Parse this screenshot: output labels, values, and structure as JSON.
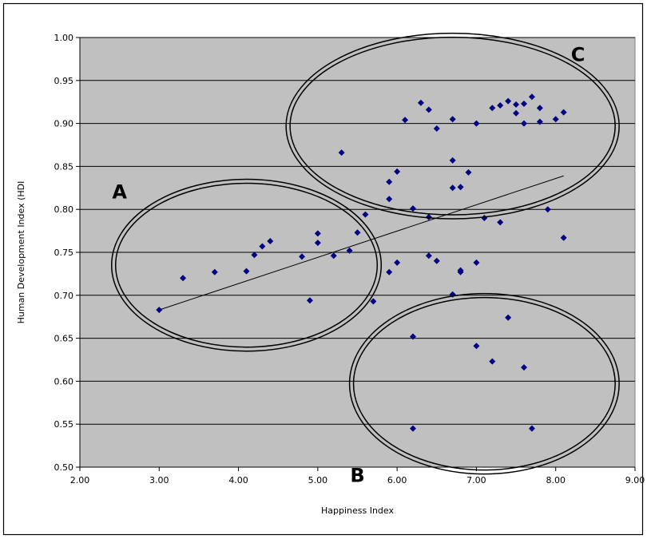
{
  "chart_data": {
    "type": "scatter",
    "title": "",
    "xlabel": "Happiness Index",
    "ylabel": "Human Development Index (HDI",
    "xlim": [
      2.0,
      9.0
    ],
    "ylim": [
      0.5,
      1.0
    ],
    "xticks": [
      "2.00",
      "3.00",
      "4.00",
      "5.00",
      "6.00",
      "7.00",
      "8.00",
      "9.00"
    ],
    "yticks": [
      "0.50",
      "0.55",
      "0.60",
      "0.65",
      "0.70",
      "0.75",
      "0.80",
      "0.85",
      "0.90",
      "0.95",
      "1.00"
    ],
    "grid": "horizontal",
    "background_color": "#c0c0c0",
    "marker_color": "#000080",
    "points": [
      [
        3.0,
        0.683
      ],
      [
        3.3,
        0.72
      ],
      [
        3.7,
        0.727
      ],
      [
        4.1,
        0.728
      ],
      [
        4.2,
        0.747
      ],
      [
        4.3,
        0.757
      ],
      [
        4.4,
        0.763
      ],
      [
        4.8,
        0.745
      ],
      [
        4.9,
        0.694
      ],
      [
        5.0,
        0.772
      ],
      [
        5.0,
        0.761
      ],
      [
        5.2,
        0.746
      ],
      [
        5.3,
        0.866
      ],
      [
        5.4,
        0.752
      ],
      [
        5.5,
        0.773
      ],
      [
        5.6,
        0.794
      ],
      [
        5.7,
        0.693
      ],
      [
        5.9,
        0.812
      ],
      [
        5.9,
        0.832
      ],
      [
        5.9,
        0.727
      ],
      [
        6.0,
        0.844
      ],
      [
        6.0,
        0.738
      ],
      [
        6.1,
        0.904
      ],
      [
        6.2,
        0.801
      ],
      [
        6.2,
        0.652
      ],
      [
        6.2,
        0.545
      ],
      [
        6.3,
        0.924
      ],
      [
        6.4,
        0.916
      ],
      [
        6.4,
        0.791
      ],
      [
        6.4,
        0.746
      ],
      [
        6.5,
        0.894
      ],
      [
        6.5,
        0.74
      ],
      [
        6.7,
        0.905
      ],
      [
        6.7,
        0.857
      ],
      [
        6.7,
        0.825
      ],
      [
        6.7,
        0.701
      ],
      [
        6.8,
        0.826
      ],
      [
        6.8,
        0.729
      ],
      [
        6.8,
        0.727
      ],
      [
        6.9,
        0.843
      ],
      [
        7.0,
        0.9
      ],
      [
        7.0,
        0.738
      ],
      [
        7.0,
        0.641
      ],
      [
        7.1,
        0.79
      ],
      [
        7.2,
        0.918
      ],
      [
        7.2,
        0.623
      ],
      [
        7.3,
        0.921
      ],
      [
        7.3,
        0.785
      ],
      [
        7.4,
        0.926
      ],
      [
        7.4,
        0.674
      ],
      [
        7.5,
        0.922
      ],
      [
        7.5,
        0.912
      ],
      [
        7.6,
        0.923
      ],
      [
        7.6,
        0.9
      ],
      [
        7.6,
        0.616
      ],
      [
        7.7,
        0.931
      ],
      [
        7.7,
        0.545
      ],
      [
        7.8,
        0.918
      ],
      [
        7.8,
        0.902
      ],
      [
        7.9,
        0.8
      ],
      [
        8.0,
        0.905
      ],
      [
        8.1,
        0.913
      ],
      [
        8.1,
        0.767
      ]
    ],
    "trendline": {
      "from": [
        3.0,
        0.683
      ],
      "to": [
        8.1,
        0.839
      ]
    },
    "annotations": [
      {
        "label": "A",
        "center": [
          4.1,
          0.735
        ],
        "radius": [
          1.7,
          0.1
        ]
      },
      {
        "label": "B",
        "center": [
          7.1,
          0.597
        ],
        "radius": [
          1.7,
          0.105
        ]
      },
      {
        "label": "C",
        "center": [
          6.7,
          0.897
        ],
        "radius": [
          2.1,
          0.108
        ]
      }
    ]
  }
}
